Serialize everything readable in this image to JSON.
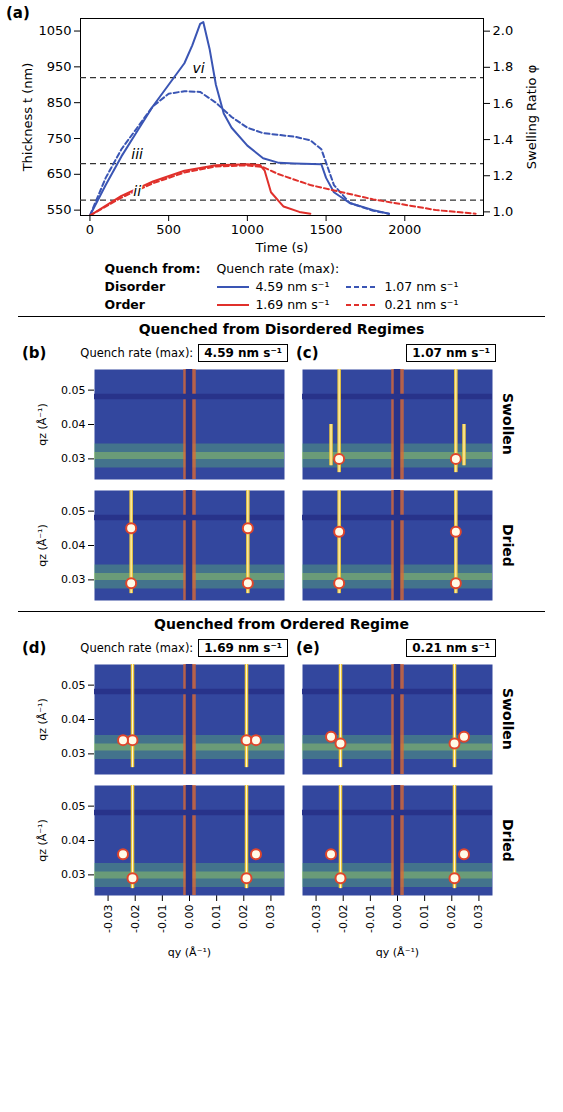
{
  "chart_data": [
    {
      "type": "line",
      "panel": "(a)",
      "xlabel": "Time (s)",
      "ylabel": "Thickness t (nm)",
      "y2label": "Swelling Ratio φ",
      "xlim": [
        -60,
        2500
      ],
      "xticks": [
        0,
        500,
        1000,
        1500,
        2000
      ],
      "ylim": [
        535,
        1085
      ],
      "yticks": [
        550,
        650,
        750,
        850,
        950,
        1050
      ],
      "y2lim": [
        0.98,
        2.07
      ],
      "y2ticks": [
        {
          "value": 1,
          "label": "1.0"
        },
        1.2,
        1.4,
        1.6,
        1.8,
        {
          "value": 2,
          "label": "2.0"
        }
      ],
      "grid": false,
      "legend": "bottom",
      "legend_titles": [
        "Quench from:",
        "Quench rate (max):"
      ],
      "annotations": [
        {
          "text": "vi",
          "x": 690,
          "y": 920
        },
        {
          "text": "iii",
          "x": 300,
          "y": 680
        },
        {
          "text": "ii",
          "x": 300,
          "y": 578
        }
      ],
      "series": [
        {
          "name": "4.59 nm s⁻¹",
          "group": "Disorder",
          "color": "#3a55b4",
          "line_style": "solid",
          "x": [
            0,
            100,
            200,
            300,
            400,
            500,
            600,
            650,
            700,
            720,
            760,
            800,
            850,
            900,
            1000,
            1100,
            1200,
            1300,
            1470,
            1500,
            1550,
            1650,
            1800,
            1900
          ],
          "values": [
            535,
            620,
            700,
            770,
            840,
            900,
            960,
            1010,
            1070,
            1075,
            1000,
            900,
            820,
            780,
            730,
            695,
            682,
            680,
            678,
            640,
            600,
            570,
            550,
            540
          ]
        },
        {
          "name": "1.07 nm s⁻¹",
          "group": "Disorder",
          "color": "#3a55b4",
          "line_style": "dashed",
          "x": [
            0,
            100,
            200,
            300,
            400,
            500,
            600,
            700,
            800,
            900,
            1000,
            1100,
            1200,
            1300,
            1400,
            1470,
            1550,
            1650,
            1800,
            1900
          ],
          "values": [
            535,
            640,
            720,
            780,
            840,
            875,
            882,
            880,
            850,
            810,
            780,
            765,
            760,
            755,
            745,
            720,
            620,
            570,
            548,
            540
          ]
        },
        {
          "name": "1.69 nm s⁻¹",
          "group": "Order",
          "color": "#e0302b",
          "line_style": "solid",
          "x": [
            0,
            200,
            400,
            600,
            800,
            1000,
            1080,
            1110,
            1150,
            1230,
            1330,
            1400
          ],
          "values": [
            535,
            590,
            630,
            660,
            675,
            678,
            676,
            660,
            600,
            560,
            545,
            540
          ]
        },
        {
          "name": "0.21 nm s⁻¹",
          "group": "Order",
          "color": "#e0302b",
          "line_style": "dashed",
          "x": [
            0,
            200,
            400,
            600,
            800,
            1000,
            1100,
            1200,
            1400,
            1600,
            1800,
            2000,
            2200,
            2450
          ],
          "values": [
            535,
            585,
            625,
            655,
            672,
            675,
            670,
            650,
            620,
            600,
            580,
            565,
            550,
            540
          ]
        }
      ]
    }
  ],
  "heatmap_axes": {
    "xlabel": "qy (Å⁻¹)",
    "ylabel": "qz (Å⁻¹)",
    "xlim": [
      -0.035,
      0.035
    ],
    "ylim": [
      0.024,
      0.056
    ],
    "xticks": [
      -0.03,
      -0.02,
      -0.01,
      {
        "value": 0,
        "label": "0.00"
      },
      0.01,
      0.02,
      0.03
    ],
    "yticks": [
      0.03,
      0.04,
      0.05
    ],
    "detector_gaps": {
      "qy": [
        -0.0012,
        0.0012
      ],
      "qz": [
        0.0472,
        0.0488
      ]
    }
  },
  "sections": [
    {
      "title": "Quenched from Disordered Regimes",
      "quench_rate_label": "Quench rate (max):",
      "rows": [
        "Swollen",
        "Dried"
      ],
      "panels": [
        {
          "label": "(b)",
          "quench_rate": "4.59 nm s⁻¹",
          "images": [
            {
              "type": "heatmap",
              "yoneda_qz": 0.031,
              "rods": [],
              "spots": []
            },
            {
              "type": "heatmap",
              "yoneda_qz": 0.031,
              "rods": [
                {
                  "qy": -0.0215,
                  "qz": [
                    0.026,
                    0.056
                  ]
                },
                {
                  "qy": 0.0215,
                  "qz": [
                    0.026,
                    0.056
                  ]
                }
              ],
              "spots": [
                {
                  "qy": -0.0215,
                  "qz": 0.029
                },
                {
                  "qy": 0.0215,
                  "qz": 0.029
                },
                {
                  "qy": -0.0215,
                  "qz": 0.045
                },
                {
                  "qy": 0.0215,
                  "qz": 0.045
                }
              ]
            }
          ]
        },
        {
          "label": "(c)",
          "quench_rate": "1.07 nm s⁻¹",
          "images": [
            {
              "type": "heatmap",
              "yoneda_qz": 0.031,
              "rods": [
                {
                  "qy": -0.0215,
                  "qz": [
                    0.026,
                    0.056
                  ]
                },
                {
                  "qy": 0.0215,
                  "qz": [
                    0.026,
                    0.056
                  ]
                },
                {
                  "qy": -0.0245,
                  "qz": [
                    0.028,
                    0.04
                  ]
                },
                {
                  "qy": 0.0245,
                  "qz": [
                    0.028,
                    0.04
                  ]
                }
              ],
              "spots": [
                {
                  "qy": -0.0215,
                  "qz": 0.03
                },
                {
                  "qy": 0.0215,
                  "qz": 0.03
                }
              ]
            },
            {
              "type": "heatmap",
              "yoneda_qz": 0.031,
              "rods": [
                {
                  "qy": -0.0215,
                  "qz": [
                    0.026,
                    0.056
                  ]
                },
                {
                  "qy": 0.0215,
                  "qz": [
                    0.026,
                    0.056
                  ]
                }
              ],
              "spots": [
                {
                  "qy": -0.0215,
                  "qz": 0.029
                },
                {
                  "qy": 0.0215,
                  "qz": 0.029
                },
                {
                  "qy": -0.0215,
                  "qz": 0.044
                },
                {
                  "qy": 0.0215,
                  "qz": 0.044
                }
              ]
            }
          ]
        }
      ]
    },
    {
      "title": "Quenched from Ordered Regime",
      "quench_rate_label": "Quench rate (max):",
      "rows": [
        "Swollen",
        "Dried"
      ],
      "panels": [
        {
          "label": "(d)",
          "quench_rate": "1.69 nm s⁻¹",
          "images": [
            {
              "type": "heatmap",
              "yoneda_qz": 0.032,
              "rods": [
                {
                  "qy": -0.021,
                  "qz": [
                    0.026,
                    0.056
                  ]
                },
                {
                  "qy": 0.021,
                  "qz": [
                    0.026,
                    0.056
                  ]
                }
              ],
              "spots": [
                {
                  "qy": -0.021,
                  "qz": 0.034
                },
                {
                  "qy": 0.021,
                  "qz": 0.034
                },
                {
                  "qy": -0.0245,
                  "qz": 0.034
                },
                {
                  "qy": 0.0245,
                  "qz": 0.034
                }
              ]
            },
            {
              "type": "heatmap",
              "yoneda_qz": 0.03,
              "rods": [
                {
                  "qy": -0.021,
                  "qz": [
                    0.026,
                    0.056
                  ]
                },
                {
                  "qy": 0.021,
                  "qz": [
                    0.026,
                    0.056
                  ]
                }
              ],
              "spots": [
                {
                  "qy": -0.021,
                  "qz": 0.029
                },
                {
                  "qy": 0.021,
                  "qz": 0.029
                },
                {
                  "qy": -0.0245,
                  "qz": 0.036
                },
                {
                  "qy": 0.0245,
                  "qz": 0.036
                }
              ]
            }
          ]
        },
        {
          "label": "(e)",
          "quench_rate": "0.21 nm s⁻¹",
          "images": [
            {
              "type": "heatmap",
              "yoneda_qz": 0.032,
              "rods": [
                {
                  "qy": -0.021,
                  "qz": [
                    0.026,
                    0.056
                  ]
                },
                {
                  "qy": 0.021,
                  "qz": [
                    0.026,
                    0.056
                  ]
                }
              ],
              "spots": [
                {
                  "qy": -0.021,
                  "qz": 0.033
                },
                {
                  "qy": 0.021,
                  "qz": 0.033
                },
                {
                  "qy": -0.0245,
                  "qz": 0.035
                },
                {
                  "qy": 0.0245,
                  "qz": 0.035
                }
              ]
            },
            {
              "type": "heatmap",
              "yoneda_qz": 0.03,
              "rods": [
                {
                  "qy": -0.021,
                  "qz": [
                    0.026,
                    0.056
                  ]
                },
                {
                  "qy": 0.021,
                  "qz": [
                    0.026,
                    0.056
                  ]
                }
              ],
              "spots": [
                {
                  "qy": -0.021,
                  "qz": 0.029
                },
                {
                  "qy": 0.021,
                  "qz": 0.029
                },
                {
                  "qy": -0.0245,
                  "qz": 0.036
                },
                {
                  "qy": 0.0245,
                  "qz": 0.036
                }
              ]
            }
          ]
        }
      ]
    }
  ]
}
